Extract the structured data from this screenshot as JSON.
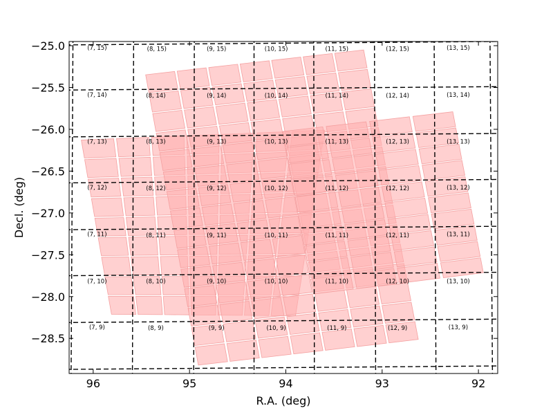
{
  "chart_data": {
    "type": "scatter",
    "xlabel": "R.A. (deg)",
    "ylabel": "Decl. (deg)",
    "xlim": [
      96.25,
      91.8
    ],
    "ylim": [
      -28.92,
      -24.95
    ],
    "x_inverted": true,
    "xticks": [
      96,
      95,
      94,
      93,
      92
    ],
    "xtick_labels": [
      "96",
      "95",
      "94",
      "93",
      "92"
    ],
    "yticks": [
      -25.0,
      -25.5,
      -26.0,
      -26.5,
      -27.0,
      -27.5,
      -28.0,
      -28.5
    ],
    "ytick_labels": [
      "−25.0",
      "−25.5",
      "−26.0",
      "−26.5",
      "−27.0",
      "−27.5",
      "−28.0",
      "−28.5"
    ],
    "grid": false,
    "footprint": {
      "color": "#ffb0b0",
      "edge_color": "#f4a0a0",
      "chips": [
        {
          "corners": [
            [
              96.14,
              -26.12
            ],
            [
              93.58,
              -26.0
            ],
            [
              93.89,
              -28.24
            ],
            [
              95.82,
              -28.22
            ]
          ],
          "rows": 9,
          "cols": 7
        },
        {
          "corners": [
            [
              95.47,
              -25.34
            ],
            [
              93.18,
              -25.04
            ],
            [
              92.61,
              -28.52
            ],
            [
              94.92,
              -28.83
            ]
          ],
          "rows": 15,
          "cols": 7
        },
        {
          "corners": [
            [
              94.05,
              -26.02
            ],
            [
              92.25,
              -25.78
            ],
            [
              91.93,
              -27.72
            ],
            [
              93.73,
              -27.98
            ]
          ],
          "rows": 10,
          "cols": 4
        }
      ]
    },
    "tiles": {
      "x_boundaries": [
        96.21,
        95.58,
        94.95,
        94.33,
        93.71,
        93.08,
        92.46,
        91.88
      ],
      "y_boundaries": [
        -24.97,
        -25.51,
        -26.07,
        -26.62,
        -27.18,
        -27.73,
        -28.29,
        -28.85
      ],
      "cells": [
        {
          "label": "(7, 15)",
          "ra": 95.96,
          "dec": -25.05
        },
        {
          "label": "(8, 15)",
          "ra": 95.34,
          "dec": -25.06
        },
        {
          "label": "(9, 15)",
          "ra": 94.72,
          "dec": -25.06
        },
        {
          "label": "(10, 15)",
          "ra": 94.1,
          "dec": -25.06
        },
        {
          "label": "(11, 15)",
          "ra": 93.47,
          "dec": -25.06
        },
        {
          "label": "(12, 15)",
          "ra": 92.84,
          "dec": -25.06
        },
        {
          "label": "(13, 15)",
          "ra": 92.21,
          "dec": -25.05
        },
        {
          "label": "(7, 14)",
          "ra": 95.96,
          "dec": -25.61
        },
        {
          "label": "(8, 14)",
          "ra": 95.35,
          "dec": -25.62
        },
        {
          "label": "(9, 14)",
          "ra": 94.72,
          "dec": -25.62
        },
        {
          "label": "(10, 14)",
          "ra": 94.1,
          "dec": -25.62
        },
        {
          "label": "(11, 14)",
          "ra": 93.47,
          "dec": -25.62
        },
        {
          "label": "(12, 14)",
          "ra": 92.84,
          "dec": -25.62
        },
        {
          "label": "(13, 14)",
          "ra": 92.21,
          "dec": -25.61
        },
        {
          "label": "(7, 13)",
          "ra": 95.96,
          "dec": -26.17
        },
        {
          "label": "(8, 13)",
          "ra": 95.35,
          "dec": -26.17
        },
        {
          "label": "(9, 13)",
          "ra": 94.72,
          "dec": -26.17
        },
        {
          "label": "(10, 13)",
          "ra": 94.1,
          "dec": -26.17
        },
        {
          "label": "(11, 13)",
          "ra": 93.47,
          "dec": -26.17
        },
        {
          "label": "(12, 13)",
          "ra": 92.84,
          "dec": -26.17
        },
        {
          "label": "(13, 13)",
          "ra": 92.21,
          "dec": -26.17
        },
        {
          "label": "(7, 12)",
          "ra": 95.96,
          "dec": -26.72
        },
        {
          "label": "(8, 12)",
          "ra": 95.35,
          "dec": -26.73
        },
        {
          "label": "(9, 12)",
          "ra": 94.72,
          "dec": -26.73
        },
        {
          "label": "(10, 12)",
          "ra": 94.1,
          "dec": -26.73
        },
        {
          "label": "(11, 12)",
          "ra": 93.47,
          "dec": -26.73
        },
        {
          "label": "(12, 12)",
          "ra": 92.84,
          "dec": -26.73
        },
        {
          "label": "(13, 12)",
          "ra": 92.21,
          "dec": -26.72
        },
        {
          "label": "(7, 11)",
          "ra": 95.96,
          "dec": -27.28
        },
        {
          "label": "(8, 11)",
          "ra": 95.35,
          "dec": -27.29
        },
        {
          "label": "(9, 11)",
          "ra": 94.72,
          "dec": -27.29
        },
        {
          "label": "(10, 11)",
          "ra": 94.1,
          "dec": -27.29
        },
        {
          "label": "(11, 11)",
          "ra": 93.47,
          "dec": -27.29
        },
        {
          "label": "(12, 11)",
          "ra": 92.84,
          "dec": -27.29
        },
        {
          "label": "(13, 11)",
          "ra": 92.21,
          "dec": -27.28
        },
        {
          "label": "(7, 10)",
          "ra": 95.96,
          "dec": -27.84
        },
        {
          "label": "(8, 10)",
          "ra": 95.35,
          "dec": -27.84
        },
        {
          "label": "(9, 10)",
          "ra": 94.72,
          "dec": -27.84
        },
        {
          "label": "(10, 10)",
          "ra": 94.1,
          "dec": -27.84
        },
        {
          "label": "(11, 10)",
          "ra": 93.47,
          "dec": -27.84
        },
        {
          "label": "(12, 10)",
          "ra": 92.84,
          "dec": -27.84
        },
        {
          "label": "(13, 10)",
          "ra": 92.21,
          "dec": -27.84
        },
        {
          "label": "(7, 9)",
          "ra": 95.96,
          "dec": -28.39
        },
        {
          "label": "(8, 9)",
          "ra": 95.35,
          "dec": -28.4
        },
        {
          "label": "(9, 9)",
          "ra": 94.72,
          "dec": -28.4
        },
        {
          "label": "(10, 9)",
          "ra": 94.1,
          "dec": -28.4
        },
        {
          "label": "(11, 9)",
          "ra": 93.47,
          "dec": -28.4
        },
        {
          "label": "(12, 9)",
          "ra": 92.84,
          "dec": -28.4
        },
        {
          "label": "(13, 9)",
          "ra": 92.21,
          "dec": -28.39
        }
      ]
    }
  }
}
